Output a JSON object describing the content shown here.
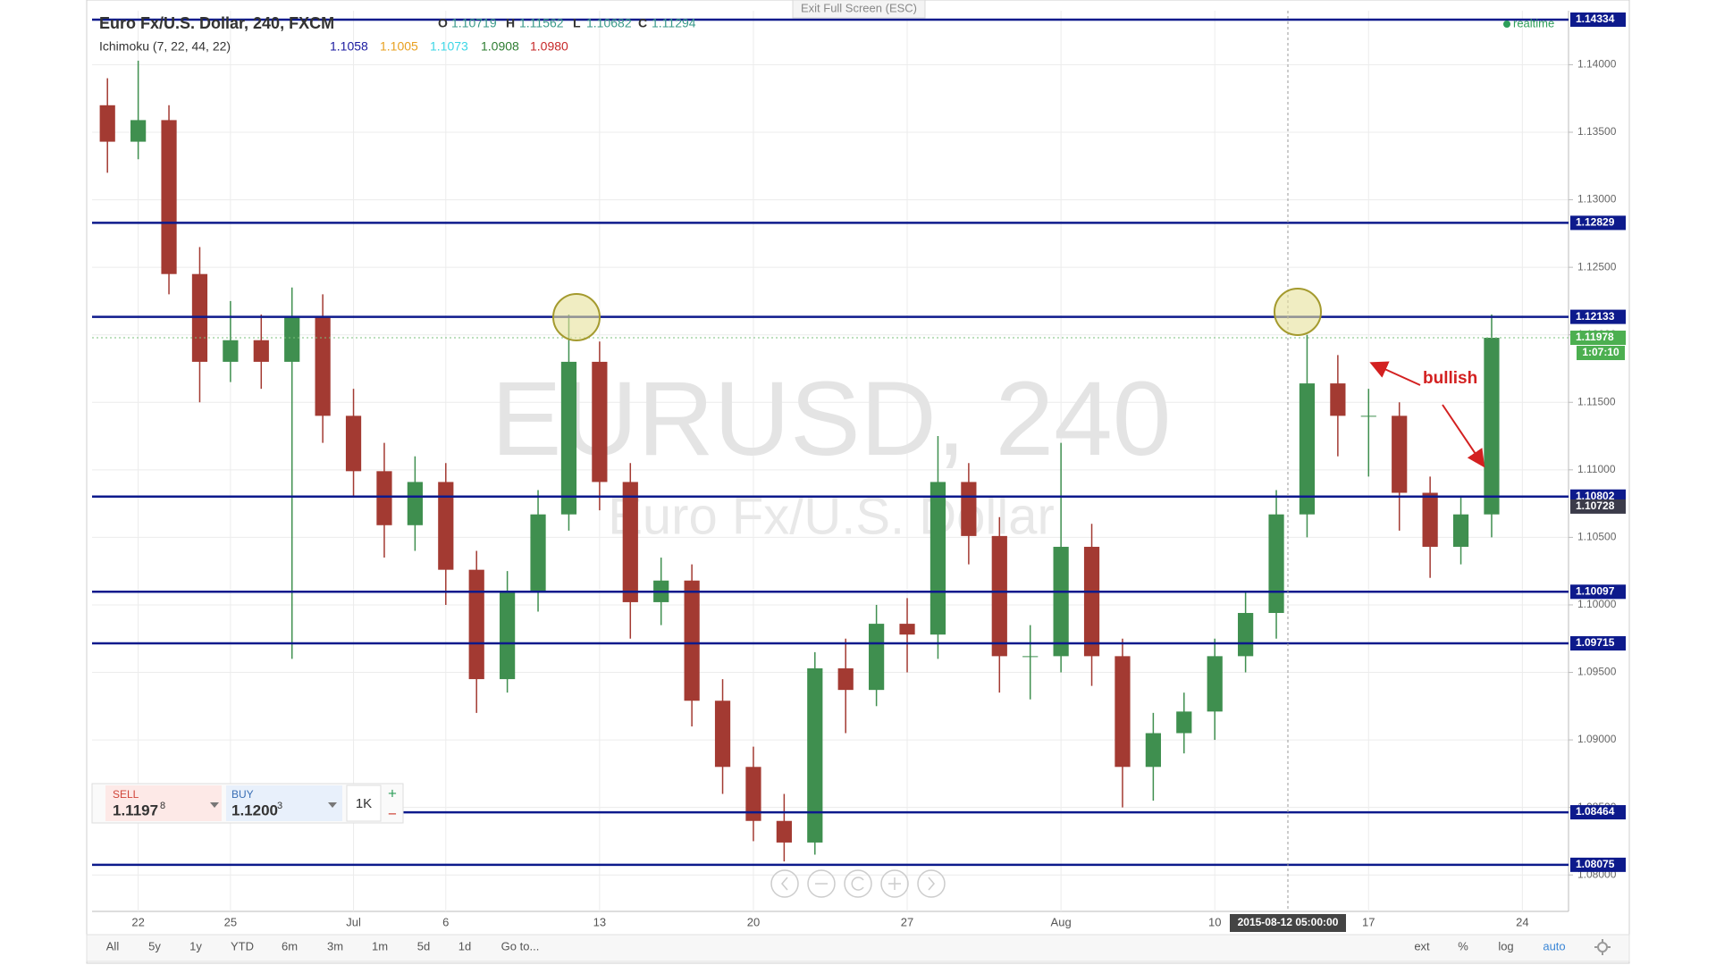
{
  "header": {
    "exit_fullscreen": "Exit Full Screen (ESC)",
    "symbol": "Euro Fx/U.S. Dollar, 240, FXCM",
    "ohlc": [
      {
        "key": "O",
        "value": "1.10719"
      },
      {
        "key": "H",
        "value": "1.11562"
      },
      {
        "key": "L",
        "value": "1.10682"
      },
      {
        "key": "C",
        "value": "1.11294"
      }
    ],
    "indicator": "Ichimoku (7, 22, 44, 22)",
    "indicator_values": [
      {
        "text": "1.1058",
        "color": "#1a1aa0"
      },
      {
        "text": "1.1005",
        "color": "#e8a020"
      },
      {
        "text": "1.1073",
        "color": "#3cd6e6"
      },
      {
        "text": "1.0908",
        "color": "#2e7d32"
      },
      {
        "text": "1.0980",
        "color": "#c62828"
      }
    ],
    "status": "realtime"
  },
  "watermark": {
    "symbol": "EURUSD, 240",
    "description": "Euro Fx/U.S. Dollar"
  },
  "chart_data": {
    "type": "candlestick",
    "categories": [
      null,
      "22",
      null,
      null,
      "25",
      null,
      null,
      null,
      "Jul",
      null,
      null,
      "6",
      null,
      null,
      null,
      null,
      "13",
      null,
      null,
      null,
      null,
      "20",
      null,
      null,
      null,
      null,
      "27",
      null,
      null,
      null,
      null,
      "Aug",
      null,
      null,
      null,
      null,
      "10",
      null,
      null,
      null,
      null,
      "17",
      null,
      null,
      null,
      null,
      "24",
      null
    ],
    "open": [
      1.137,
      1.1343,
      1.1359,
      1.1245,
      1.118,
      1.1196,
      1.118,
      1.1213,
      1.114,
      1.1099,
      1.1059,
      1.1091,
      1.1026,
      1.0945,
      1.101,
      1.1067,
      1.118,
      1.1091,
      1.1002,
      1.1018,
      1.0929,
      1.088,
      1.084,
      1.0824,
      1.0953,
      1.0937,
      1.0986,
      1.0978,
      1.1091,
      1.1051,
      1.0962,
      1.0962,
      1.1043,
      1.0962,
      1.088,
      1.0905,
      1.0921,
      1.0962,
      1.0994,
      1.1067,
      1.1164,
      1.114,
      1.114,
      1.1083,
      1.1043,
      1.1067,
      null,
      null
    ],
    "high": [
      1.139,
      1.1403,
      1.137,
      1.1265,
      1.1225,
      1.1215,
      1.1235,
      1.123,
      1.116,
      1.112,
      1.111,
      1.1105,
      1.104,
      1.1025,
      1.1085,
      1.1215,
      1.1195,
      1.1105,
      1.1035,
      1.103,
      1.0945,
      1.0895,
      1.086,
      1.0965,
      1.0975,
      1.1,
      1.1005,
      1.1125,
      1.1105,
      1.1065,
      1.0985,
      1.112,
      1.106,
      1.0975,
      1.092,
      1.0935,
      1.0975,
      1.101,
      1.1085,
      1.12,
      1.1185,
      1.116,
      1.115,
      1.1095,
      1.108,
      1.1215,
      null,
      null
    ],
    "low": [
      1.132,
      1.133,
      1.123,
      1.115,
      1.1165,
      1.116,
      1.096,
      1.112,
      1.108,
      1.1035,
      1.104,
      1.1,
      1.092,
      1.0935,
      1.0995,
      1.1055,
      1.107,
      1.0975,
      1.0985,
      1.091,
      1.086,
      1.0825,
      1.081,
      1.0815,
      1.0905,
      1.0925,
      1.095,
      1.096,
      1.103,
      1.0935,
      1.093,
      1.095,
      1.094,
      1.085,
      1.0855,
      1.089,
      1.09,
      1.095,
      1.0975,
      1.105,
      1.111,
      1.1095,
      1.1055,
      1.102,
      1.103,
      1.105,
      null,
      null
    ],
    "close": [
      1.1343,
      1.1359,
      1.1245,
      1.118,
      1.1196,
      1.118,
      1.1213,
      1.114,
      1.1099,
      1.1059,
      1.1091,
      1.1026,
      1.0945,
      1.101,
      1.1067,
      1.118,
      1.1091,
      1.1002,
      1.1018,
      1.0929,
      1.088,
      1.084,
      1.0824,
      1.0953,
      1.0937,
      1.0986,
      1.0978,
      1.1091,
      1.1051,
      1.0962,
      1.0962,
      1.1043,
      1.0962,
      1.088,
      1.0905,
      1.0921,
      1.0962,
      1.0994,
      1.1067,
      1.1164,
      1.114,
      1.114,
      1.1083,
      1.1043,
      1.1067,
      1.11978,
      null,
      null
    ],
    "up_color": "#3f8f4f",
    "down_color": "#a33a32",
    "ylim": [
      1.0773,
      1.144
    ],
    "yticks": [
      {
        "value": 1.08,
        "label": "1.08000"
      },
      {
        "value": 1.085,
        "label": "1.08500"
      },
      {
        "value": 1.09,
        "label": "1.09000"
      },
      {
        "value": 1.095,
        "label": "1.09500"
      },
      {
        "value": 1.1,
        "label": "1.10000"
      },
      {
        "value": 1.105,
        "label": "1.10500"
      },
      {
        "value": 1.11,
        "label": "1.11000"
      },
      {
        "value": 1.115,
        "label": "1.11500"
      },
      {
        "value": 1.12,
        "label": "1.12000"
      },
      {
        "value": 1.125,
        "label": "1.12500"
      },
      {
        "value": 1.13,
        "label": "1.13000"
      },
      {
        "value": 1.135,
        "label": "1.13500"
      },
      {
        "value": 1.14,
        "label": "1.14000"
      }
    ],
    "grid": true,
    "levels": [
      1.14334,
      1.12829,
      1.12133,
      1.10802,
      1.10097,
      1.09715,
      1.08464,
      1.08075
    ],
    "level_color": "#0d1a8c",
    "cloud_price": 1.10728,
    "last_price": 1.11978,
    "last_price_color": "#4caf50",
    "countdown": "1:07:10",
    "crosshair_time": "2015-08-12 05:00:00",
    "annotation": "bullish"
  },
  "trade_panel": {
    "sell_label": "SELL",
    "sell_price": "1.1197",
    "sell_pip": "8",
    "buy_label": "BUY",
    "buy_price": "1.1200",
    "buy_pip": "3",
    "quantity": "1K",
    "plus": "+",
    "minus": "−"
  },
  "toolbar": {
    "ranges": [
      "All",
      "5y",
      "1y",
      "YTD",
      "6m",
      "3m",
      "1m",
      "5d",
      "1d"
    ],
    "goto": "Go to...",
    "options": [
      "ext",
      "%",
      "log",
      "auto"
    ]
  }
}
